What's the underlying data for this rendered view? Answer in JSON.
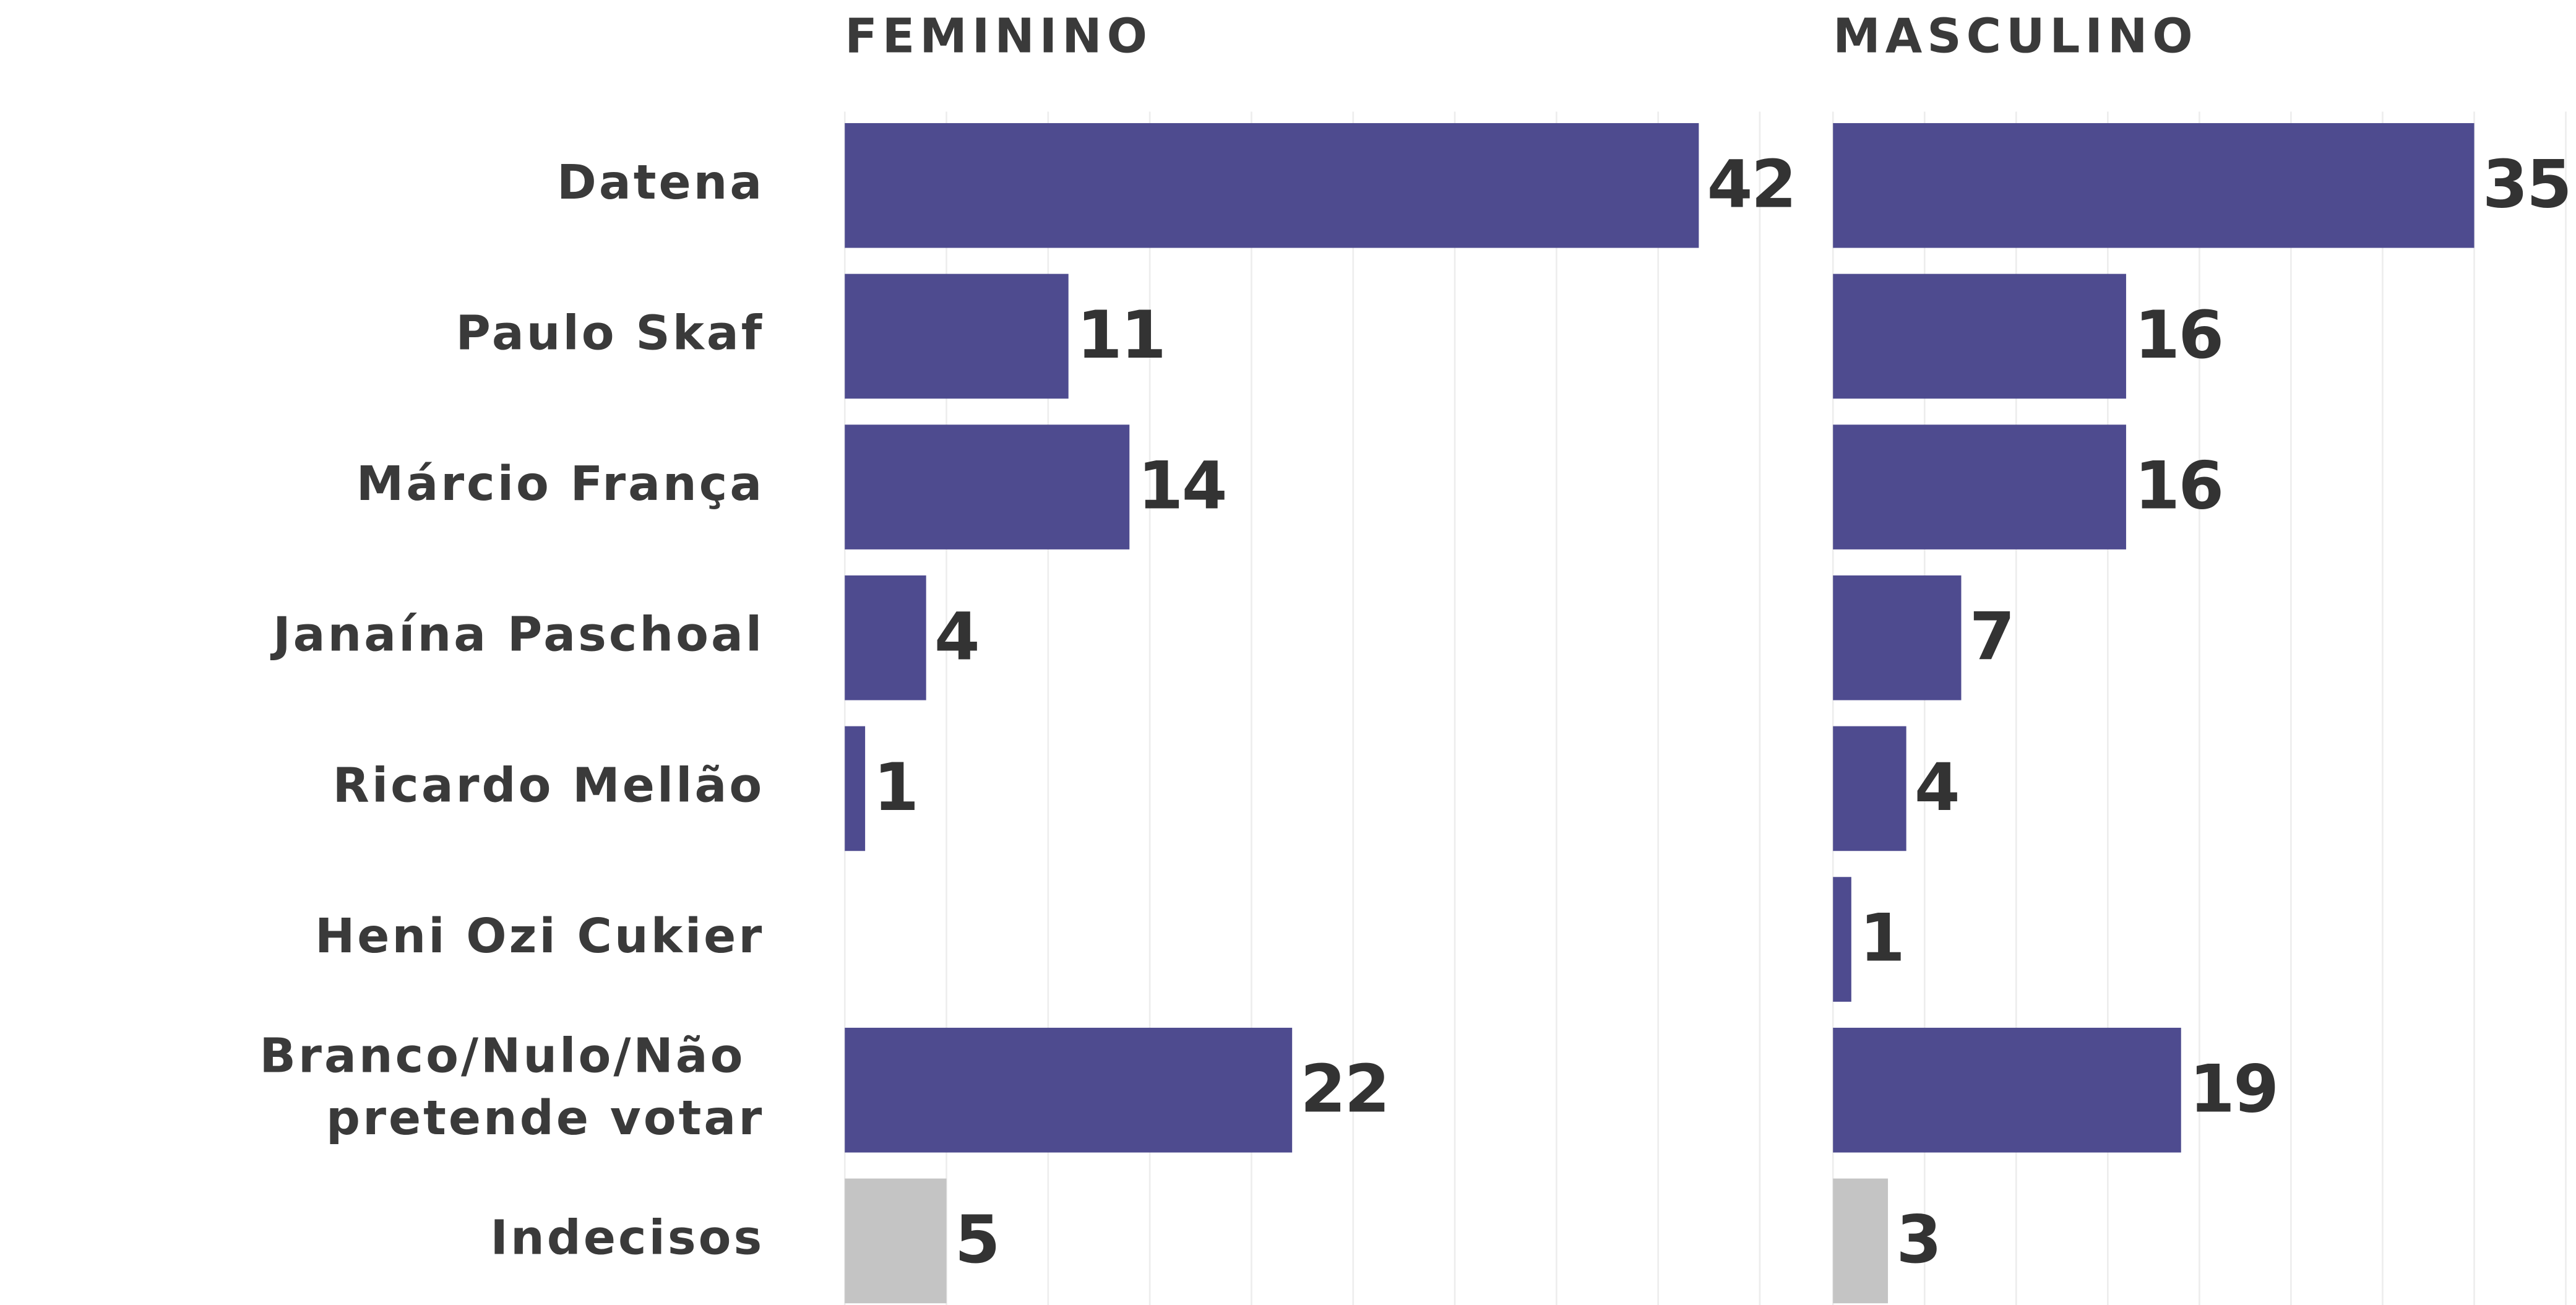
{
  "chart_data": {
    "type": "bar",
    "orientation": "horizontal",
    "categories": [
      "Datena",
      "Paulo Skaf",
      "Márcio França",
      "Janaína Paschoal",
      "Ricardo Mellão",
      "Heni Ozi Cukier",
      "Branco/Nulo/Não pretende votar",
      "Indecisos"
    ],
    "colors": [
      "#4e4b8f",
      "#4e4b8f",
      "#4e4b8f",
      "#4e4b8f",
      "#4e4b8f",
      "#4e4b8f",
      "#4e4b8f",
      "#c4c4c4"
    ],
    "grid": true,
    "series": [
      {
        "name": "FEMININO",
        "values": [
          42,
          11,
          14,
          4,
          1,
          null,
          22,
          5
        ],
        "xlim": [
          0,
          46.5
        ],
        "xticks": [
          0,
          5,
          10,
          15,
          20,
          25,
          30,
          35,
          40,
          45
        ]
      },
      {
        "name": "MASCULINO",
        "values": [
          35,
          16,
          16,
          7,
          4,
          1,
          19,
          3
        ],
        "xlim": [
          0,
          40.5
        ],
        "xticks": [
          0,
          5,
          10,
          15,
          20,
          25,
          30,
          35,
          40
        ]
      }
    ]
  }
}
